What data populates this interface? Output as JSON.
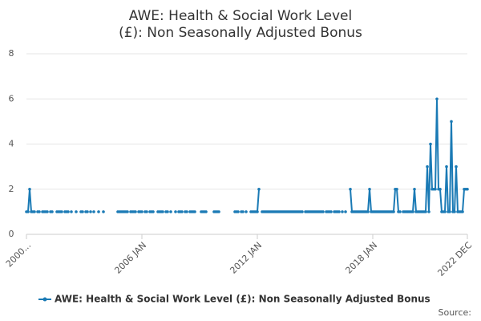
{
  "chart_data": {
    "type": "line",
    "title": "AWE: Health & Social Work Level (£): Non Seasonally Adjusted Bonus",
    "source": "Source:",
    "categories": [
      "2000...",
      null,
      null,
      null,
      null,
      null,
      null,
      null,
      null,
      null,
      null,
      null,
      null,
      null,
      null,
      null,
      null,
      null,
      null,
      null,
      null,
      null,
      null,
      null,
      null,
      null,
      null,
      null,
      null,
      null,
      null,
      null,
      null,
      null,
      null,
      null,
      null,
      null,
      null,
      null,
      null,
      null,
      null,
      null,
      null,
      null,
      null,
      null,
      null,
      null,
      null,
      null,
      null,
      null,
      null,
      null,
      null,
      null,
      null,
      null,
      null,
      null,
      null,
      null,
      null,
      null,
      null,
      null,
      null,
      null,
      null,
      null,
      "2006 JAN",
      null,
      null,
      null,
      null,
      null,
      null,
      null,
      null,
      null,
      null,
      null,
      null,
      null,
      null,
      null,
      null,
      null,
      null,
      null,
      null,
      null,
      null,
      null,
      null,
      null,
      null,
      null,
      null,
      null,
      null,
      null,
      null,
      null,
      null,
      null,
      null,
      null,
      null,
      null,
      null,
      null,
      null,
      null,
      null,
      null,
      null,
      null,
      null,
      null,
      null,
      null,
      null,
      null,
      null,
      null,
      null,
      null,
      null,
      null,
      null,
      null,
      null,
      null,
      null,
      null,
      null,
      null,
      null,
      null,
      null,
      null,
      "2012 JAN",
      null,
      null,
      null,
      null,
      null,
      null,
      null,
      null,
      null,
      null,
      null,
      null,
      null,
      null,
      null,
      null,
      null,
      null,
      null,
      null,
      null,
      null,
      null,
      null,
      null,
      null,
      null,
      null,
      null,
      null,
      null,
      null,
      null,
      null,
      null,
      null,
      null,
      null,
      null,
      null,
      null,
      null,
      null,
      null,
      null,
      null,
      null,
      null,
      null,
      null,
      null,
      null,
      null,
      null,
      null,
      null,
      null,
      null,
      null,
      null,
      null,
      null,
      null,
      null,
      null,
      null,
      null,
      null,
      null,
      null,
      null,
      "2018 JAN",
      null,
      null,
      null,
      null,
      null,
      null,
      null,
      null,
      null,
      null,
      null,
      null,
      null,
      null,
      null,
      null,
      null,
      null,
      null,
      null,
      null,
      null,
      null,
      null,
      null,
      null,
      null,
      null,
      null,
      null,
      null,
      null,
      null,
      null,
      null,
      null,
      null,
      null,
      null,
      null,
      null,
      null,
      null,
      null,
      null,
      null,
      null,
      null,
      null,
      null,
      null,
      null,
      null,
      null,
      null,
      null,
      null,
      null,
      "2022 DEC"
    ],
    "series": [
      {
        "name": "AWE: Health & Social Work Level (£): Non Seasonally Adjusted Bonus",
        "color": "#1a7ab5",
        "values": [
          1,
          1,
          2,
          1,
          1,
          1,
          null,
          1,
          1,
          null,
          1,
          1,
          1,
          1,
          null,
          1,
          1,
          null,
          null,
          1,
          1,
          1,
          1,
          null,
          1,
          1,
          1,
          null,
          1,
          null,
          null,
          1,
          null,
          null,
          1,
          1,
          null,
          1,
          1,
          null,
          1,
          null,
          1,
          null,
          null,
          1,
          null,
          null,
          1,
          null,
          null,
          null,
          null,
          null,
          null,
          null,
          null,
          1,
          1,
          1,
          1,
          1,
          1,
          1,
          null,
          1,
          1,
          1,
          1,
          null,
          1,
          1,
          1,
          null,
          1,
          1,
          null,
          1,
          1,
          1,
          null,
          null,
          1,
          1,
          1,
          1,
          null,
          1,
          1,
          null,
          1,
          null,
          null,
          1,
          null,
          1,
          1,
          1,
          null,
          1,
          1,
          null,
          1,
          1,
          1,
          1,
          null,
          null,
          null,
          1,
          1,
          1,
          1,
          null,
          null,
          null,
          null,
          1,
          1,
          1,
          1,
          null,
          null,
          null,
          null,
          null,
          null,
          null,
          null,
          null,
          1,
          1,
          1,
          null,
          1,
          1,
          null,
          1,
          null,
          null,
          1,
          1,
          1,
          1,
          1,
          2,
          null,
          1,
          1,
          1,
          1,
          1,
          1,
          1,
          1,
          1,
          1,
          1,
          1,
          1,
          1,
          1,
          1,
          1,
          1,
          1,
          1,
          1,
          1,
          1,
          1,
          1,
          1,
          null,
          1,
          1,
          1,
          1,
          1,
          1,
          1,
          1,
          1,
          1,
          1,
          1,
          null,
          1,
          1,
          1,
          1,
          null,
          1,
          1,
          1,
          1,
          null,
          1,
          null,
          1,
          null,
          null,
          2,
          1,
          1,
          1,
          1,
          1,
          1,
          1,
          1,
          1,
          1,
          1,
          2,
          1,
          1,
          1,
          1,
          1,
          1,
          1,
          1,
          1,
          1,
          1,
          1,
          1,
          1,
          1,
          2,
          2,
          1,
          1,
          null,
          1,
          1,
          1,
          1,
          1,
          1,
          1,
          2,
          1,
          1,
          1,
          1,
          1,
          1,
          1,
          3,
          1,
          4,
          2,
          2,
          2,
          6,
          2,
          2,
          1,
          1,
          1,
          3,
          1,
          1,
          5,
          1,
          1,
          3,
          1,
          1,
          1,
          1,
          2,
          2,
          2
        ]
      }
    ],
    "ylim": [
      0,
      8
    ],
    "yticks": [
      0,
      2,
      4,
      6,
      8
    ],
    "grid": true
  }
}
